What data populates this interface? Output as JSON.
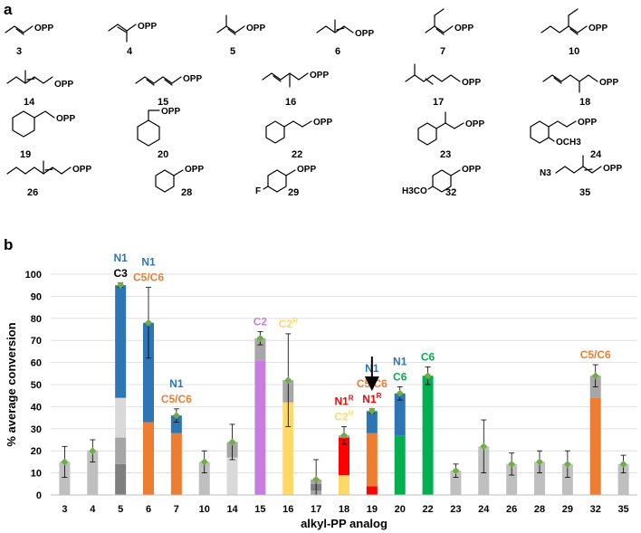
{
  "panel_a": {
    "label": "a",
    "opp_label": "OPP",
    "compounds": [
      {
        "id": "3"
      },
      {
        "id": "4"
      },
      {
        "id": "5"
      },
      {
        "id": "6"
      },
      {
        "id": "7"
      },
      {
        "id": "10"
      },
      {
        "id": "14"
      },
      {
        "id": "15"
      },
      {
        "id": "16"
      },
      {
        "id": "17"
      },
      {
        "id": "18"
      },
      {
        "id": "19"
      },
      {
        "id": "20"
      },
      {
        "id": "22"
      },
      {
        "id": "23"
      },
      {
        "id": "24",
        "extra_text": "OCH3"
      },
      {
        "id": "26"
      },
      {
        "id": "28"
      },
      {
        "id": "29",
        "extra_text": "F"
      },
      {
        "id": "32",
        "extra_text": "H3CO"
      },
      {
        "id": "35",
        "extra_text": "N3"
      }
    ]
  },
  "panel_b": {
    "label": "b"
  },
  "chart_data": {
    "type": "bar",
    "stacked": true,
    "xlabel": "alkyl-PP analog",
    "ylabel": "% average conversion",
    "ylim": [
      0,
      100
    ],
    "yticks": [
      0,
      10,
      20,
      30,
      40,
      50,
      60,
      70,
      80,
      90,
      100
    ],
    "grid": true,
    "colors": {
      "N1": "#2e75b6",
      "C5/C6": "#ed7d31",
      "C2": "#c77ddf",
      "C2R": "#ffd966",
      "N1R": "#ff0000",
      "C6": "#00b050",
      "unassigned": "#bfbfbf",
      "C3": "#000000"
    },
    "categories": [
      "3",
      "4",
      "5",
      "6",
      "7",
      "10",
      "14",
      "15",
      "16",
      "17",
      "18",
      "19",
      "20",
      "22",
      "23",
      "24",
      "26",
      "28",
      "29",
      "32",
      "35"
    ],
    "bars": [
      {
        "x": "3",
        "total": 15,
        "err": 7,
        "segments": [
          {
            "v": 15,
            "color": "#bfbfbf"
          }
        ],
        "annotations": []
      },
      {
        "x": "4",
        "total": 20,
        "err": 5,
        "segments": [
          {
            "v": 20,
            "color": "#bfbfbf"
          }
        ],
        "annotations": []
      },
      {
        "x": "5",
        "total": 95,
        "err": 1,
        "segments": [
          {
            "v": 14,
            "color": "#7f7f7f"
          },
          {
            "v": 12,
            "color": "#a6a6a6"
          },
          {
            "v": 18,
            "color": "#d9d9d9"
          },
          {
            "v": 51,
            "color": "#2e75b6"
          }
        ],
        "annotations": [
          {
            "text": "C3",
            "color": "#000000"
          },
          {
            "text": "N1",
            "color": "#2e75b6"
          }
        ]
      },
      {
        "x": "6",
        "total": 78,
        "err": 16,
        "segments": [
          {
            "v": 33,
            "color": "#ed7d31"
          },
          {
            "v": 45,
            "color": "#2e75b6"
          }
        ],
        "annotations": [
          {
            "text": "C5/C6",
            "color": "#ed7d31"
          },
          {
            "text": "N1",
            "color": "#2e75b6"
          }
        ]
      },
      {
        "x": "7",
        "total": 36,
        "err": 3,
        "segments": [
          {
            "v": 28,
            "color": "#ed7d31"
          },
          {
            "v": 8,
            "color": "#2e75b6"
          }
        ],
        "annotations": [
          {
            "text": "C5/C6",
            "color": "#ed7d31"
          },
          {
            "text": "N1",
            "color": "#2e75b6"
          }
        ]
      },
      {
        "x": "10",
        "total": 15,
        "err": 5,
        "segments": [
          {
            "v": 15,
            "color": "#bfbfbf"
          }
        ],
        "annotations": []
      },
      {
        "x": "14",
        "total": 24,
        "err": 8,
        "segments": [
          {
            "v": 17,
            "color": "#d9d9d9"
          },
          {
            "v": 7,
            "color": "#a6a6a6"
          }
        ],
        "annotations": []
      },
      {
        "x": "15",
        "total": 71,
        "err": 3,
        "segments": [
          {
            "v": 61,
            "color": "#c77ddf"
          },
          {
            "v": 10,
            "color": "#a6a6a6"
          }
        ],
        "annotations": [
          {
            "text": "C2",
            "color": "#c77ddf"
          }
        ]
      },
      {
        "x": "16",
        "total": 52,
        "err": 21,
        "segments": [
          {
            "v": 42,
            "color": "#ffd966"
          },
          {
            "v": 10,
            "color": "#a6a6a6"
          }
        ],
        "annotations": [
          {
            "text": "C2R",
            "color": "#ffd966"
          }
        ]
      },
      {
        "x": "17",
        "total": 7,
        "err": 9,
        "segments": [
          {
            "v": 2,
            "color": "#a6a6a6"
          },
          {
            "v": 3,
            "color": "#7f7f7f"
          },
          {
            "v": 2,
            "color": "#a6a6a6"
          }
        ],
        "annotations": []
      },
      {
        "x": "18",
        "total": 27,
        "err": 4,
        "segments": [
          {
            "v": 9,
            "color": "#ffd966"
          },
          {
            "v": 17,
            "color": "#ff0000"
          },
          {
            "v": 1,
            "color": "#a6a6a6"
          }
        ],
        "annotations": [
          {
            "text": "C2R",
            "color": "#ffd966"
          },
          {
            "text": "N1R",
            "color": "#ff0000"
          }
        ]
      },
      {
        "x": "19",
        "total": 38,
        "err": 1,
        "segments": [
          {
            "v": 4,
            "color": "#ff0000"
          },
          {
            "v": 24,
            "color": "#ed7d31"
          },
          {
            "v": 10,
            "color": "#2e75b6"
          }
        ],
        "annotations": [
          {
            "text": "N1R",
            "color": "#ff0000"
          },
          {
            "text": "C5/C6",
            "color": "#ed7d31"
          },
          {
            "text": "N1",
            "color": "#2e75b6"
          }
        ]
      },
      {
        "x": "20",
        "total": 46,
        "err": 3,
        "segments": [
          {
            "v": 27,
            "color": "#00b050"
          },
          {
            "v": 19,
            "color": "#2e75b6"
          }
        ],
        "annotations": [
          {
            "text": "C6",
            "color": "#00b050"
          },
          {
            "text": "N1",
            "color": "#2e75b6"
          }
        ]
      },
      {
        "x": "22",
        "total": 54,
        "err": 4,
        "segments": [
          {
            "v": 54,
            "color": "#00b050"
          }
        ],
        "annotations": [
          {
            "text": "C6",
            "color": "#00b050"
          }
        ]
      },
      {
        "x": "23",
        "total": 11,
        "err": 3,
        "segments": [
          {
            "v": 11,
            "color": "#bfbfbf"
          }
        ],
        "annotations": []
      },
      {
        "x": "24",
        "total": 22,
        "err": 12,
        "segments": [
          {
            "v": 22,
            "color": "#bfbfbf"
          }
        ],
        "annotations": []
      },
      {
        "x": "26",
        "total": 14,
        "err": 5,
        "segments": [
          {
            "v": 14,
            "color": "#bfbfbf"
          }
        ],
        "annotations": []
      },
      {
        "x": "28",
        "total": 15,
        "err": 5,
        "segments": [
          {
            "v": 15,
            "color": "#bfbfbf"
          }
        ],
        "annotations": []
      },
      {
        "x": "29",
        "total": 14,
        "err": 6,
        "segments": [
          {
            "v": 14,
            "color": "#bfbfbf"
          }
        ],
        "annotations": []
      },
      {
        "x": "32",
        "total": 54,
        "err": 5,
        "segments": [
          {
            "v": 44,
            "color": "#ed7d31"
          },
          {
            "v": 10,
            "color": "#a6a6a6"
          }
        ],
        "annotations": [
          {
            "text": "C5/C6",
            "color": "#ed7d31"
          }
        ]
      },
      {
        "x": "35",
        "total": 14,
        "err": 4,
        "segments": [
          {
            "v": 14,
            "color": "#bfbfbf"
          }
        ],
        "annotations": []
      }
    ]
  }
}
